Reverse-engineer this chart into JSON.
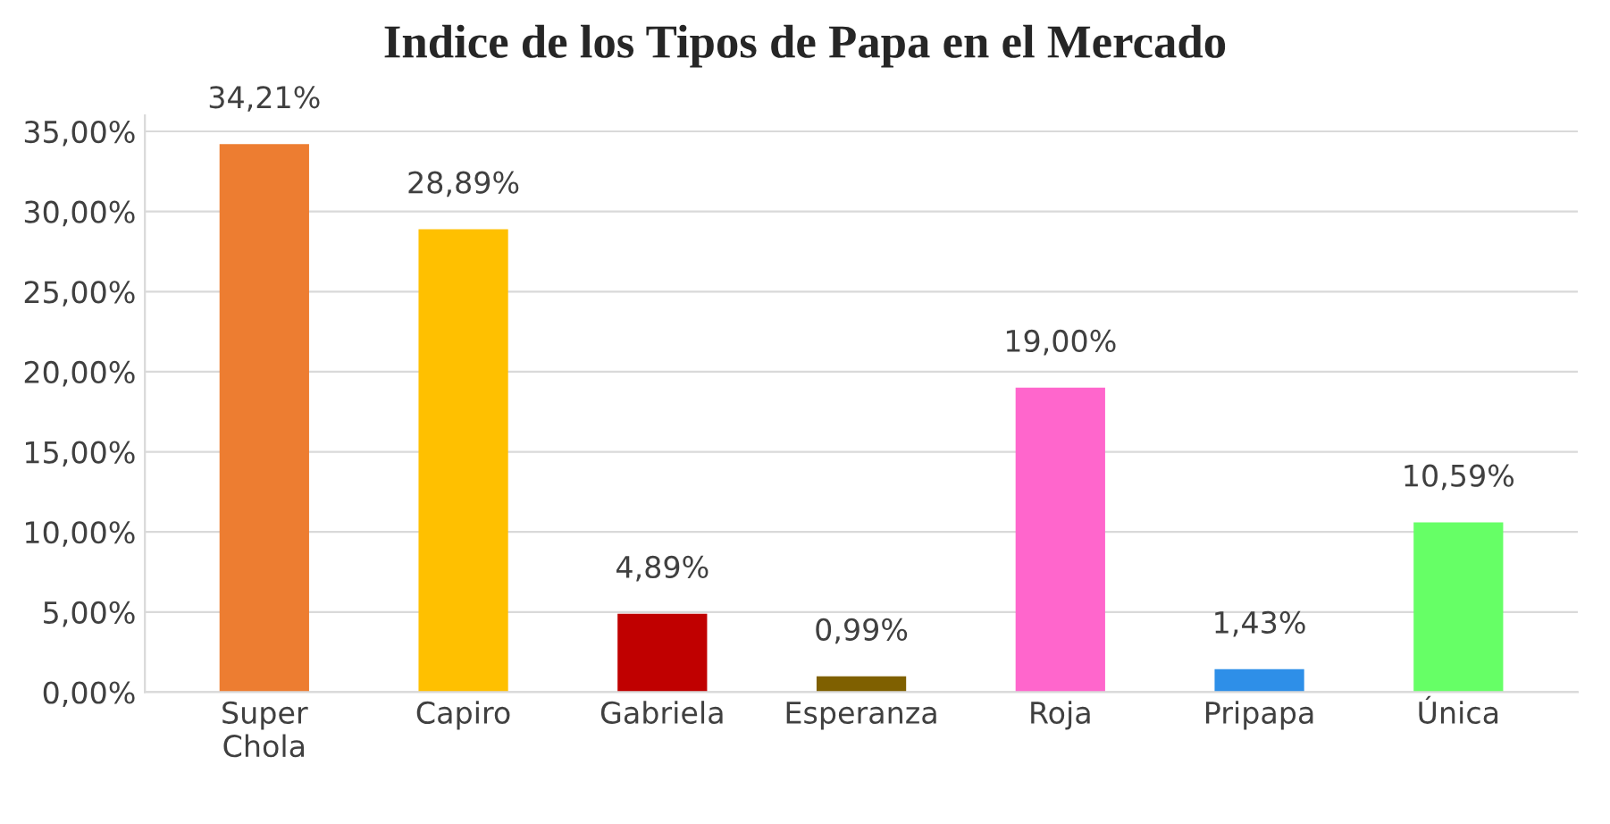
{
  "chart_data": {
    "type": "bar",
    "title": "Indice de los Tipos de Papa en el Mercado",
    "categories": [
      "Super\nChola",
      "Capiro",
      "Gabriela",
      "Esperanza",
      "Roja",
      "Pripapa",
      "Única"
    ],
    "values": [
      34.21,
      28.89,
      4.89,
      0.99,
      19.0,
      1.43,
      10.59
    ],
    "value_labels": [
      "34,21%",
      "28,89%",
      "4,89%",
      "0,99%",
      "19,00%",
      "1,43%",
      "10,59%"
    ],
    "colors": [
      "#ed7d31",
      "#ffc000",
      "#c00000",
      "#7f6000",
      "#ff66cc",
      "#2e8fe8",
      "#66ff66"
    ],
    "ylim": [
      0,
      36
    ],
    "yticks": [
      {
        "value": 0,
        "label": "0,00%"
      },
      {
        "value": 5,
        "label": "5,00%"
      },
      {
        "value": 10,
        "label": "10,00%"
      },
      {
        "value": 15,
        "label": "15,00%"
      },
      {
        "value": 20,
        "label": "20,00%"
      },
      {
        "value": 25,
        "label": "25,00%"
      },
      {
        "value": 30,
        "label": "30,00%"
      },
      {
        "value": 35,
        "label": "35,00%"
      }
    ],
    "grid": "y",
    "legend": false
  }
}
